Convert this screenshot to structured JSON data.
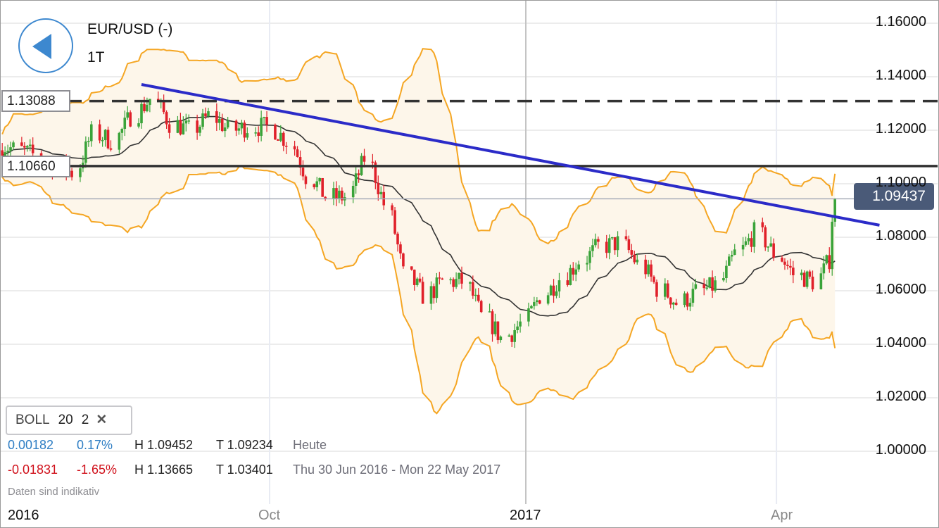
{
  "header": {
    "title": "EUR/USD (-)",
    "interval": "1T",
    "back_icon": "back-arrow-icon"
  },
  "levels": {
    "dashed": "1.13088",
    "solid": "1.10660",
    "current": "1.09437"
  },
  "indicator": {
    "name": "BOLL",
    "period": "20",
    "dev": "2",
    "close_icon": "close-x-icon"
  },
  "stats": {
    "today": {
      "change": "0.00182",
      "pct": "0.17%",
      "high": "H 1.09452",
      "low": "T 1.09234",
      "label": "Heute"
    },
    "range": {
      "change": "-0.01831",
      "pct": "-1.65%",
      "high": "H 1.13665",
      "low": "T 1.03401",
      "label": "Thu 30 Jun 2016 - Mon 22 May 2017"
    }
  },
  "note": "Daten sind indikativ",
  "colors": {
    "up": "#3aa339",
    "down": "#e0202a",
    "band": "#f5a623",
    "band_fill": "#fdf6ea",
    "middle": "#333333",
    "trend": "#2b2bc8",
    "positive": "#2f7ec4",
    "negative": "#d0111b",
    "current_bg": "#4a5a78"
  },
  "chart_data": {
    "type": "candlestick",
    "interval": "daily",
    "yaxis": {
      "ticks": [
        "1.00000",
        "1.02000",
        "1.04000",
        "1.06000",
        "1.08000",
        "1.10000",
        "1.12000",
        "1.14000",
        "1.16000"
      ],
      "ylim": [
        0.985,
        1.17
      ],
      "side": "right"
    },
    "xaxis": {
      "ticks": [
        {
          "label": "2016",
          "date": "2016-07-01",
          "major": true
        },
        {
          "label": "Oct",
          "date": "2016-10-01",
          "major": false
        },
        {
          "label": "2017",
          "date": "2017-01-01",
          "major": true
        },
        {
          "label": "Apr",
          "date": "2017-04-01",
          "major": false
        }
      ]
    },
    "weekly_closes_approx": {
      "week_ending": [
        "2016-07-01",
        "2016-07-08",
        "2016-07-15",
        "2016-07-22",
        "2016-07-29",
        "2016-08-05",
        "2016-08-12",
        "2016-08-19",
        "2016-08-26",
        "2016-09-02",
        "2016-09-09",
        "2016-09-16",
        "2016-09-23",
        "2016-09-30",
        "2016-10-07",
        "2016-10-14",
        "2016-10-21",
        "2016-10-28",
        "2016-11-04",
        "2016-11-11",
        "2016-11-18",
        "2016-11-25",
        "2016-12-02",
        "2016-12-09",
        "2016-12-16",
        "2016-12-23",
        "2016-12-30",
        "2017-01-06",
        "2017-01-13",
        "2017-01-20",
        "2017-01-27",
        "2017-02-03",
        "2017-02-10",
        "2017-02-17",
        "2017-02-24",
        "2017-03-03",
        "2017-03-10",
        "2017-03-17",
        "2017-03-24",
        "2017-03-31",
        "2017-04-07",
        "2017-04-14",
        "2017-04-21",
        "2017-04-25"
      ],
      "close": [
        1.1129,
        1.1108,
        1.1068,
        1.1042,
        1.1187,
        1.1161,
        1.1253,
        1.1318,
        1.1226,
        1.12,
        1.1253,
        1.12,
        1.1213,
        1.1213,
        1.1161,
        1.1029,
        1.095,
        1.095,
        1.1095,
        1.0924,
        1.0661,
        1.0582,
        1.0634,
        1.0634,
        1.0503,
        1.0424,
        1.0476,
        1.0582,
        1.0647,
        1.0713,
        1.0766,
        1.0779,
        1.07,
        1.0608,
        1.0555,
        1.0595,
        1.0621,
        1.0739,
        1.0818,
        1.0739,
        1.0661,
        1.0634,
        1.0739,
        1.09437
      ]
    },
    "bollinger": {
      "period": 20,
      "stddev": 2
    },
    "horizontal_lines": [
      {
        "value": 1.13088,
        "style": "dashed"
      },
      {
        "value": 1.1066,
        "style": "solid"
      },
      {
        "value": 1.09437,
        "style": "current"
      }
    ],
    "trendline": {
      "from": {
        "date": "2016-08-16",
        "value": 1.1371
      },
      "to": {
        "date": "2017-05-08",
        "value": 1.0845
      }
    }
  }
}
